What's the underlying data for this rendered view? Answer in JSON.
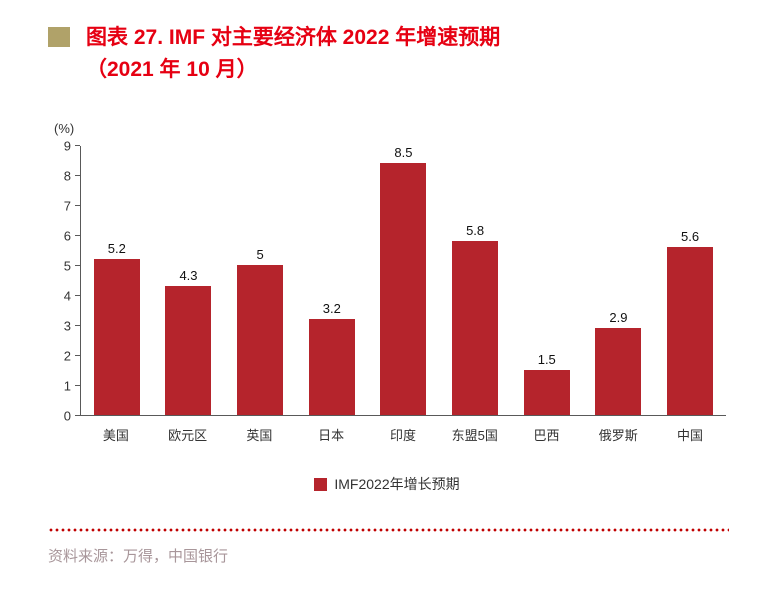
{
  "header": {
    "title_line1": "图表 27. IMF 对主要经济体 2022 年增速预期",
    "title_line2": "（2021 年 10 月）"
  },
  "chart_data": {
    "type": "bar",
    "title": "图表 27. IMF 对主要经济体 2022 年增速预期（2021 年 10 月）",
    "unit_label": "(%)",
    "categories": [
      "美国",
      "欧元区",
      "英国",
      "日本",
      "印度",
      "东盟5国",
      "巴西",
      "俄罗斯",
      "中国"
    ],
    "values": [
      5.2,
      4.3,
      5,
      3.2,
      8.5,
      5.8,
      1.5,
      2.9,
      5.6
    ],
    "value_labels": [
      "5.2",
      "4.3",
      "5",
      "3.2",
      "8.5",
      "5.8",
      "1.5",
      "2.9",
      "5.6"
    ],
    "ylim": [
      0,
      9
    ],
    "yticks": [
      0,
      1,
      2,
      3,
      4,
      5,
      6,
      7,
      8,
      9
    ],
    "grid": false,
    "legend": [
      "IMF2022年增长预期"
    ],
    "legend_position": "bottom"
  },
  "footer": {
    "source": "资料来源：万得，中国银行"
  },
  "colors": {
    "title_red": "#E60012",
    "bullet_khaki": "#B0A269",
    "bar_red": "#B5242C",
    "axis_gray": "#595959",
    "dotted_red": "#C00000",
    "source_gray": "#A8969A"
  }
}
